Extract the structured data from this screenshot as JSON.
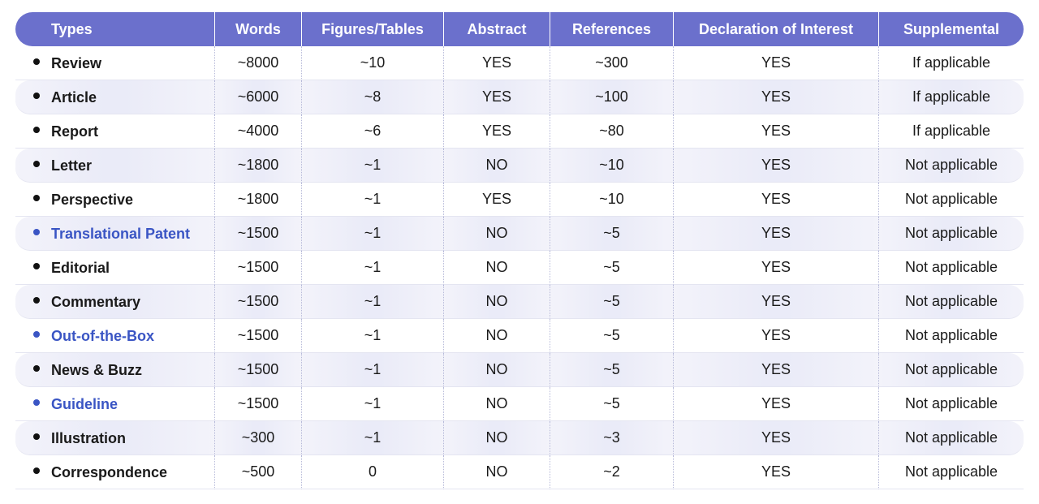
{
  "table": {
    "headers": [
      "Types",
      "Words",
      "Figures/Tables",
      "Abstract",
      "References",
      "Declaration of Interest",
      "Supplemental"
    ],
    "rows": [
      {
        "type": "Review",
        "words": "~8000",
        "figures": "~10",
        "abstract": "YES",
        "references": "~300",
        "declaration": "YES",
        "supplemental": "If applicable",
        "highlight": false
      },
      {
        "type": "Article",
        "words": "~6000",
        "figures": "~8",
        "abstract": "YES",
        "references": "~100",
        "declaration": "YES",
        "supplemental": "If applicable",
        "highlight": false
      },
      {
        "type": "Report",
        "words": "~4000",
        "figures": "~6",
        "abstract": "YES",
        "references": "~80",
        "declaration": "YES",
        "supplemental": "If applicable",
        "highlight": false
      },
      {
        "type": "Letter",
        "words": "~1800",
        "figures": "~1",
        "abstract": "NO",
        "references": "~10",
        "declaration": "YES",
        "supplemental": "Not applicable",
        "highlight": false
      },
      {
        "type": "Perspective",
        "words": "~1800",
        "figures": "~1",
        "abstract": "YES",
        "references": "~10",
        "declaration": "YES",
        "supplemental": "Not applicable",
        "highlight": false
      },
      {
        "type": "Translational Patent",
        "words": "~1500",
        "figures": "~1",
        "abstract": "NO",
        "references": "~5",
        "declaration": "YES",
        "supplemental": "Not applicable",
        "highlight": true
      },
      {
        "type": "Editorial",
        "words": "~1500",
        "figures": "~1",
        "abstract": "NO",
        "references": "~5",
        "declaration": "YES",
        "supplemental": "Not applicable",
        "highlight": false
      },
      {
        "type": "Commentary",
        "words": "~1500",
        "figures": "~1",
        "abstract": "NO",
        "references": "~5",
        "declaration": "YES",
        "supplemental": "Not applicable",
        "highlight": false
      },
      {
        "type": "Out-of-the-Box",
        "words": "~1500",
        "figures": "~1",
        "abstract": "NO",
        "references": "~5",
        "declaration": "YES",
        "supplemental": "Not applicable",
        "highlight": true
      },
      {
        "type": "News & Buzz",
        "words": "~1500",
        "figures": "~1",
        "abstract": "NO",
        "references": "~5",
        "declaration": "YES",
        "supplemental": "Not applicable",
        "highlight": false
      },
      {
        "type": "Guideline",
        "words": "~1500",
        "figures": "~1",
        "abstract": "NO",
        "references": "~5",
        "declaration": "YES",
        "supplemental": "Not applicable",
        "highlight": true
      },
      {
        "type": "Illustration",
        "words": "~300",
        "figures": "~1",
        "abstract": "NO",
        "references": "~3",
        "declaration": "YES",
        "supplemental": "Not applicable",
        "highlight": false
      },
      {
        "type": "Correspondence",
        "words": "~500",
        "figures": "0",
        "abstract": "NO",
        "references": "~2",
        "declaration": "YES",
        "supplemental": "Not applicable",
        "highlight": false
      }
    ]
  },
  "colors": {
    "header_bg": "#6b70cc",
    "highlight_text": "#3a55c4",
    "row_shade": "#eaebf8"
  }
}
